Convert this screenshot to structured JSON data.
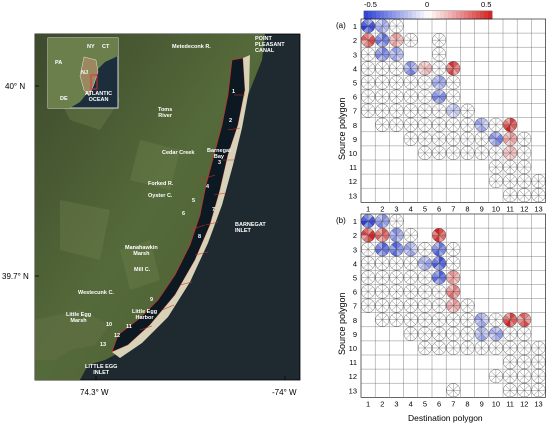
{
  "map": {
    "place_labels": [
      {
        "key": "ny",
        "text": "NY"
      },
      {
        "key": "ct",
        "text": "CT"
      },
      {
        "key": "pa",
        "text": "PA"
      },
      {
        "key": "nj",
        "text": "NJ"
      },
      {
        "key": "de",
        "text": "DE"
      },
      {
        "key": "atlantic",
        "text": "ATLANTIC\nOCEAN"
      },
      {
        "key": "metedeconk",
        "text": "Metedeconk R."
      },
      {
        "key": "pointpleasant",
        "text": "POINT\nPLEASANT\nCANAL"
      },
      {
        "key": "tomsriver",
        "text": "Toms\nRiver"
      },
      {
        "key": "cedarcreek",
        "text": "Cedar Creek"
      },
      {
        "key": "barnegatbay",
        "text": "Barnegat\nBay"
      },
      {
        "key": "forkedr",
        "text": "Forked R."
      },
      {
        "key": "oysterc",
        "text": "Oyster C."
      },
      {
        "key": "barnegatinlet",
        "text": "BARNEGAT\nINLET"
      },
      {
        "key": "manahawkin",
        "text": "Manahawkin\nMarsh"
      },
      {
        "key": "millc",
        "text": "Mill C."
      },
      {
        "key": "westecunk",
        "text": "Westecunk C."
      },
      {
        "key": "littleeggmarsh",
        "text": "Little Egg\nMarsh"
      },
      {
        "key": "littleeggharbor",
        "text": "Little Egg\nHarbor"
      },
      {
        "key": "littleegginlet",
        "text": "LITTLE EGG\nINLET"
      }
    ],
    "polygon_numbers": [
      "1",
      "2",
      "3",
      "4",
      "5",
      "6",
      "7",
      "8",
      "9",
      "10",
      "11",
      "12",
      "13"
    ],
    "lat_labels": [
      "40° N",
      "39.7° N"
    ],
    "lon_labels": [
      "74.3° W",
      "-74° W"
    ]
  },
  "colorbar": {
    "tick_labels": [
      "-0.5",
      "0",
      "0.5"
    ],
    "colors": {
      "negative": "#2b3fd6",
      "zero": "#ffffff",
      "positive": "#d42020"
    }
  },
  "matrix": {
    "panel_a_label": "(a)",
    "panel_b_label": "(b)",
    "ylabel": "Source polygon",
    "xlabel": "Destination polygon",
    "row_labels": [
      "1",
      "2",
      "3",
      "4",
      "5",
      "6",
      "7",
      "8",
      "9",
      "10",
      "11",
      "12",
      "13"
    ],
    "col_labels": [
      "1",
      "2",
      "3",
      "4",
      "5",
      "6",
      "7",
      "8",
      "9",
      "10",
      "11",
      "12",
      "13"
    ],
    "panel_a_active": [
      [
        1,
        2,
        3
      ],
      [
        1,
        2,
        3,
        4,
        6
      ],
      [
        1,
        2,
        3,
        6
      ],
      [
        1,
        2,
        3,
        4,
        5,
        6,
        7
      ],
      [
        1,
        2,
        3,
        4,
        5,
        6,
        7
      ],
      [
        1,
        2,
        3,
        4,
        5,
        6,
        7
      ],
      [
        1,
        2,
        3,
        4,
        5,
        6,
        7,
        8
      ],
      [
        2,
        3,
        4,
        5,
        6,
        7,
        8,
        9,
        10,
        11
      ],
      [
        4,
        5,
        6,
        7,
        8,
        9,
        10,
        11,
        12
      ],
      [
        5,
        6,
        7,
        8,
        9,
        10,
        11,
        12
      ],
      [
        10,
        11,
        12
      ],
      [
        10,
        11,
        12,
        13
      ],
      [
        11,
        12,
        13
      ]
    ],
    "panel_b_active": [
      [
        1,
        2,
        3
      ],
      [
        1,
        2,
        3,
        4,
        6
      ],
      [
        1,
        2,
        3,
        4,
        5,
        6,
        7
      ],
      [
        1,
        2,
        3,
        4,
        5,
        6,
        7
      ],
      [
        1,
        2,
        3,
        4,
        5,
        6,
        7
      ],
      [
        1,
        2,
        3,
        4,
        5,
        6,
        7
      ],
      [
        1,
        2,
        3,
        4,
        5,
        6,
        7,
        8
      ],
      [
        2,
        3,
        4,
        5,
        6,
        7,
        8,
        9,
        10,
        11,
        12
      ],
      [
        4,
        5,
        6,
        7,
        8,
        9,
        10,
        11,
        12
      ],
      [
        5,
        6,
        7,
        8,
        9,
        10,
        11,
        12,
        13
      ],
      [
        11,
        12,
        13
      ],
      [
        10,
        11,
        12,
        13
      ],
      [
        7,
        11,
        12,
        13
      ]
    ],
    "panel_a_values": [
      {
        "r": 1,
        "c": 1,
        "v": -0.6
      },
      {
        "r": 1,
        "c": 2,
        "v": -0.3
      },
      {
        "r": 2,
        "c": 1,
        "v": 0.5
      },
      {
        "r": 2,
        "c": 2,
        "v": -0.5
      },
      {
        "r": 2,
        "c": 3,
        "v": 0.3
      },
      {
        "r": 3,
        "c": 2,
        "v": -0.4
      },
      {
        "r": 3,
        "c": 3,
        "v": -0.3
      },
      {
        "r": 4,
        "c": 4,
        "v": -0.4
      },
      {
        "r": 4,
        "c": 5,
        "v": 0.2
      },
      {
        "r": 4,
        "c": 7,
        "v": 0.6
      },
      {
        "r": 5,
        "c": 6,
        "v": -0.3
      },
      {
        "r": 6,
        "c": 6,
        "v": -0.4
      },
      {
        "r": 7,
        "c": 7,
        "v": -0.2
      },
      {
        "r": 8,
        "c": 9,
        "v": -0.3
      },
      {
        "r": 8,
        "c": 11,
        "v": 0.6
      },
      {
        "r": 9,
        "c": 10,
        "v": -0.4
      },
      {
        "r": 9,
        "c": 11,
        "v": 0.3
      },
      {
        "r": 10,
        "c": 11,
        "v": 0.2
      }
    ],
    "panel_b_values": [
      {
        "r": 1,
        "c": 1,
        "v": -0.6
      },
      {
        "r": 1,
        "c": 2,
        "v": -0.4
      },
      {
        "r": 2,
        "c": 1,
        "v": 0.6
      },
      {
        "r": 2,
        "c": 2,
        "v": 0.5
      },
      {
        "r": 2,
        "c": 3,
        "v": -0.4
      },
      {
        "r": 2,
        "c": 6,
        "v": 0.6
      },
      {
        "r": 3,
        "c": 2,
        "v": -0.5
      },
      {
        "r": 3,
        "c": 3,
        "v": -0.5
      },
      {
        "r": 3,
        "c": 4,
        "v": -0.3
      },
      {
        "r": 3,
        "c": 6,
        "v": -0.5
      },
      {
        "r": 4,
        "c": 5,
        "v": -0.3
      },
      {
        "r": 4,
        "c": 6,
        "v": -0.6
      },
      {
        "r": 5,
        "c": 6,
        "v": -0.5
      },
      {
        "r": 5,
        "c": 7,
        "v": 0.3
      },
      {
        "r": 6,
        "c": 7,
        "v": 0.4
      },
      {
        "r": 7,
        "c": 7,
        "v": 0.3
      },
      {
        "r": 8,
        "c": 9,
        "v": -0.3
      },
      {
        "r": 8,
        "c": 11,
        "v": 0.6
      },
      {
        "r": 8,
        "c": 12,
        "v": 0.5
      },
      {
        "r": 9,
        "c": 9,
        "v": -0.3
      },
      {
        "r": 9,
        "c": 10,
        "v": -0.3
      }
    ]
  }
}
